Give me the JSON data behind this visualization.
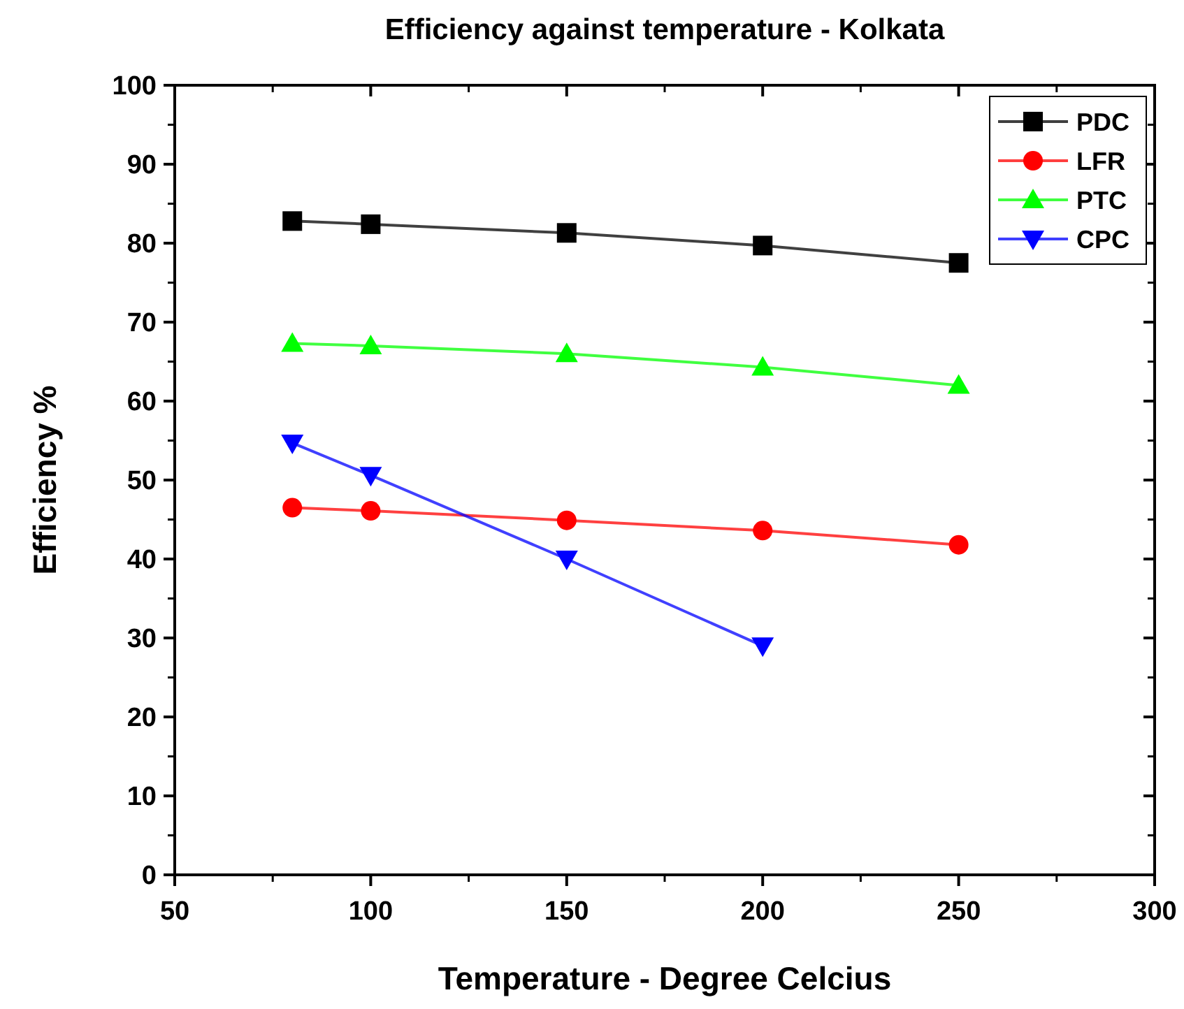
{
  "chart_data": {
    "type": "line",
    "title": "Efficiency against temperature - Kolkata",
    "xlabel": "Temperature - Degree Celcius",
    "ylabel": "Efficiency %",
    "xlim": [
      50,
      300
    ],
    "xticks": [
      50,
      100,
      150,
      200,
      250,
      300
    ],
    "ylim": [
      0,
      100
    ],
    "yticks": [
      0,
      10,
      20,
      30,
      40,
      50,
      60,
      70,
      80,
      90,
      100
    ],
    "grid": false,
    "legend": "top right",
    "line_style": "solid",
    "series": [
      {
        "name": "PDC",
        "color": "#000000",
        "marker": "square",
        "x": [
          80,
          100,
          150,
          200,
          250
        ],
        "values": [
          82.8,
          82.4,
          81.3,
          79.7,
          77.5
        ]
      },
      {
        "name": "LFR",
        "color": "#ff0000",
        "marker": "circle",
        "x": [
          80,
          100,
          150,
          200,
          250
        ],
        "values": [
          46.5,
          46.1,
          44.9,
          43.6,
          41.8
        ]
      },
      {
        "name": "PTC",
        "color": "#00ff00",
        "marker": "triangle",
        "x": [
          80,
          100,
          150,
          200,
          250
        ],
        "values": [
          67.3,
          67.0,
          66.0,
          64.3,
          62.0
        ]
      },
      {
        "name": "CPC",
        "color": "#0000ff",
        "marker": "triangle-down",
        "x": [
          80,
          100,
          150,
          200
        ],
        "values": [
          54.7,
          50.6,
          40.0,
          29.0
        ]
      }
    ]
  }
}
